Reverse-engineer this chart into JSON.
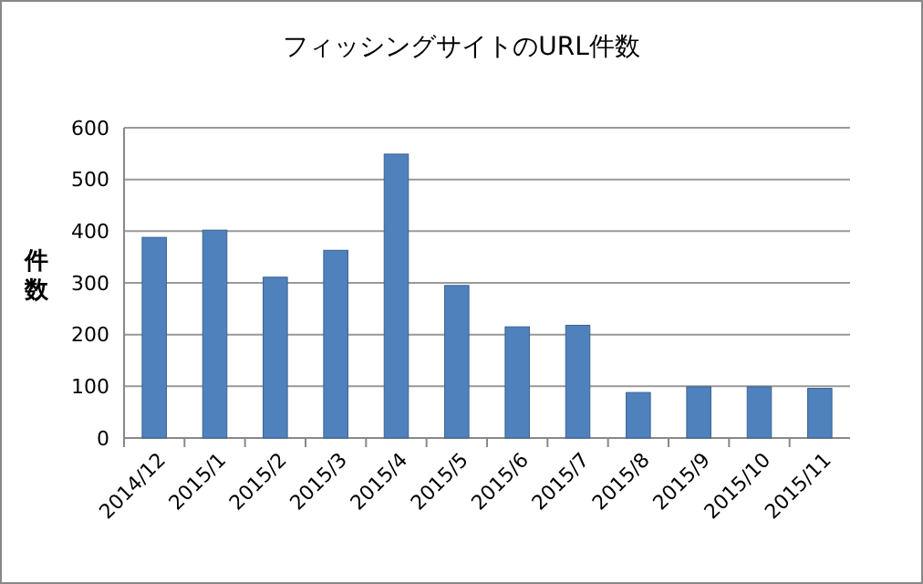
{
  "chart_data": {
    "type": "bar",
    "title": "フィッシングサイトのURL件数",
    "ylabel": "件数",
    "categories": [
      "2014/12",
      "2015/1",
      "2015/2",
      "2015/3",
      "2015/4",
      "2015/5",
      "2015/6",
      "2015/7",
      "2015/8",
      "2015/9",
      "2015/10",
      "2015/11"
    ],
    "values": [
      388,
      402,
      311,
      363,
      549,
      295,
      215,
      218,
      88,
      99,
      99,
      96
    ],
    "color": "#4f81bd",
    "ylim": [
      0,
      600
    ],
    "yticks": [
      0,
      100,
      200,
      300,
      400,
      500,
      600
    ],
    "grid": "y"
  }
}
